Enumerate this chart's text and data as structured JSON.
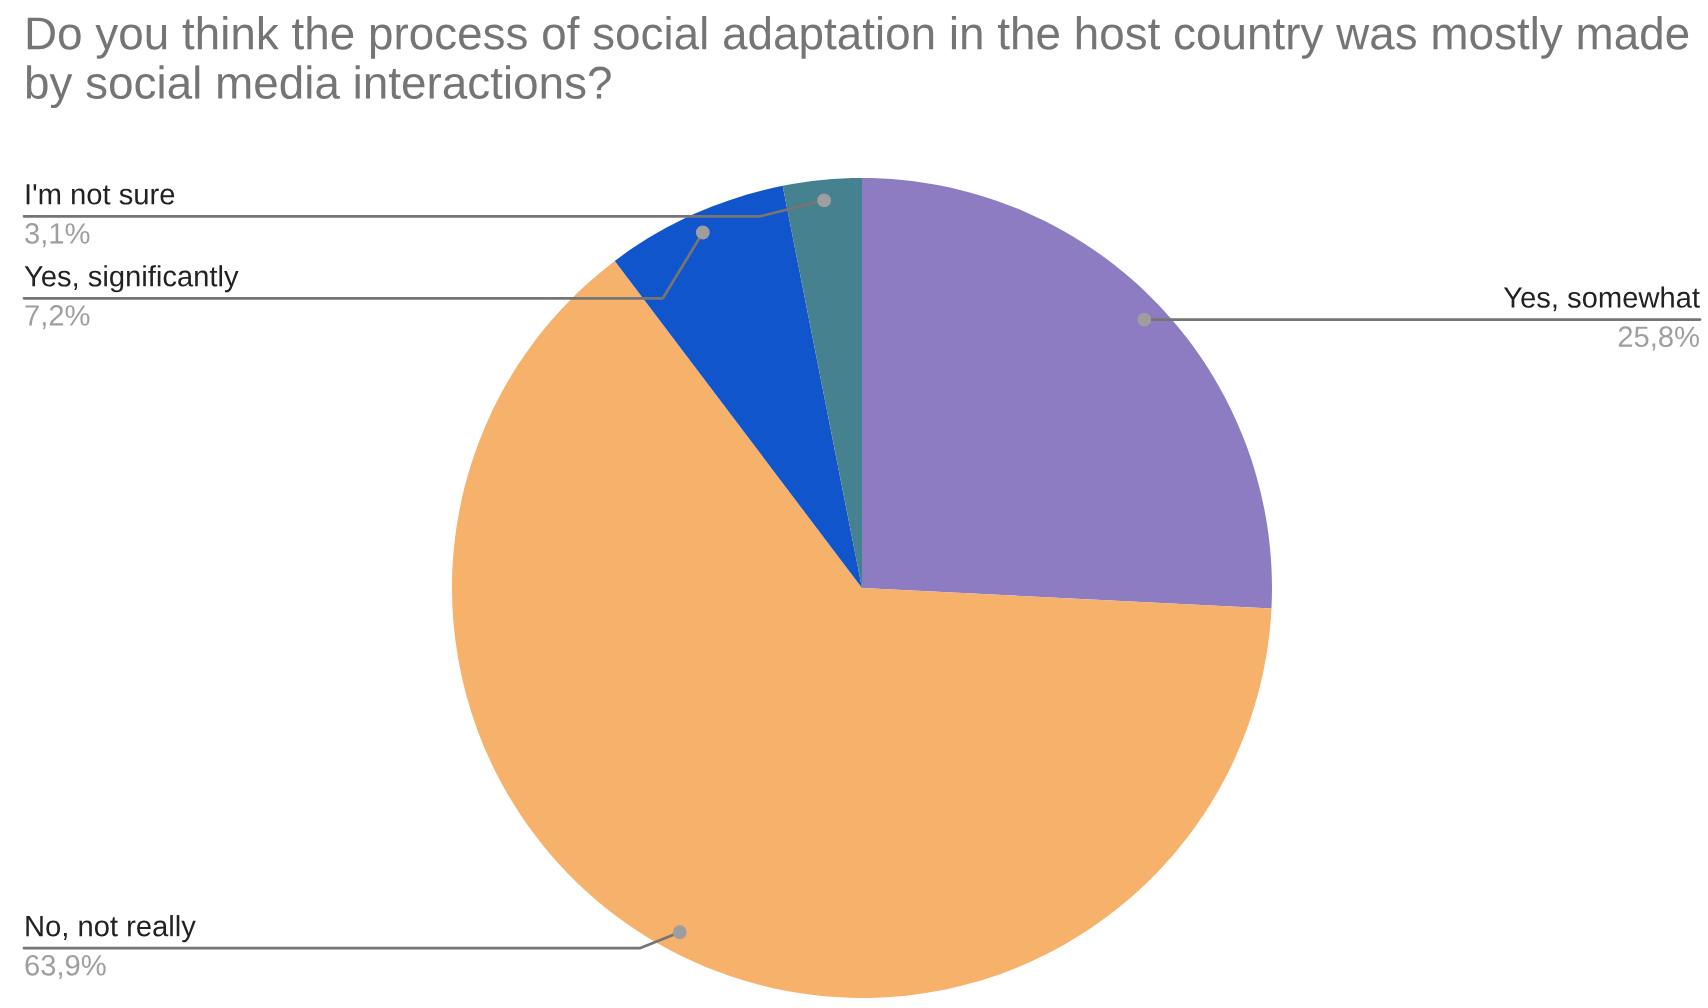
{
  "chart_data": {
    "type": "pie",
    "title": "Do you think the process of social adaptation in the host country was mostly made by social media interactions?",
    "categories": [
      "Yes, somewhat",
      "No, not really",
      "Yes, significantly",
      "I'm not sure"
    ],
    "values": [
      25.8,
      63.9,
      7.2,
      3.1
    ],
    "colors": [
      "#8e7cc3",
      "#f6b26b",
      "#1155cc",
      "#45818e"
    ],
    "value_labels": [
      "25,8%",
      "63,9%",
      "7,2%",
      "3,1%"
    ]
  }
}
